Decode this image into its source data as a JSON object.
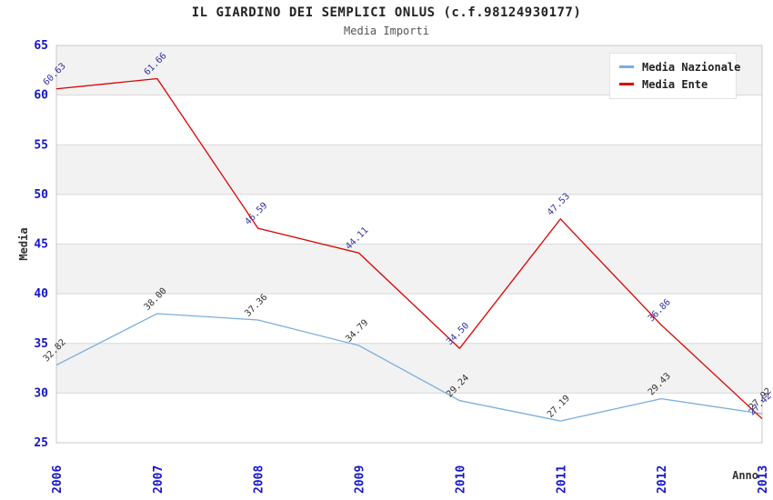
{
  "chart_data": {
    "type": "line",
    "title": "IL GIARDINO DEI SEMPLICI ONLUS (c.f.98124930177)",
    "subtitle": "Media Importi",
    "xlabel": "Anno",
    "ylabel": "Media",
    "categories": [
      "2006",
      "2007",
      "2008",
      "2009",
      "2010",
      "2011",
      "2012",
      "2013"
    ],
    "ylim": [
      25,
      65
    ],
    "ytick_step": 5,
    "yticks": [
      25,
      30,
      35,
      40,
      45,
      50,
      55,
      60,
      65
    ],
    "grid": "horizontal-bands-alternating",
    "legend_position": "top-right",
    "series": [
      {
        "name": "Media Nazionale",
        "color": "#7aaede",
        "label_color": "#333333",
        "values": [
          32.82,
          38.0,
          37.36,
          34.79,
          29.24,
          27.19,
          29.43,
          27.92
        ],
        "labels": [
          "32.82",
          "38.00",
          "37.36",
          "34.79",
          "29.24",
          "27.19",
          "29.43",
          "27.92"
        ]
      },
      {
        "name": "Media Ente",
        "color": "#dd0000",
        "label_color": "#3333a2",
        "values": [
          60.63,
          61.66,
          46.59,
          44.11,
          34.5,
          47.53,
          36.86,
          27.42
        ],
        "labels": [
          "60.63",
          "61.66",
          "46.59",
          "44.11",
          "34.50",
          "47.53",
          "36.86",
          "27.42"
        ]
      }
    ],
    "colors": {
      "background": "#ffffff",
      "band": "#f2f2f2",
      "grid": "#d9d9d9",
      "border": "#c8c8c8",
      "tick_label": "#1515cc",
      "title": "#222222",
      "subtitle": "#555555",
      "axis_label": "#333333"
    }
  }
}
